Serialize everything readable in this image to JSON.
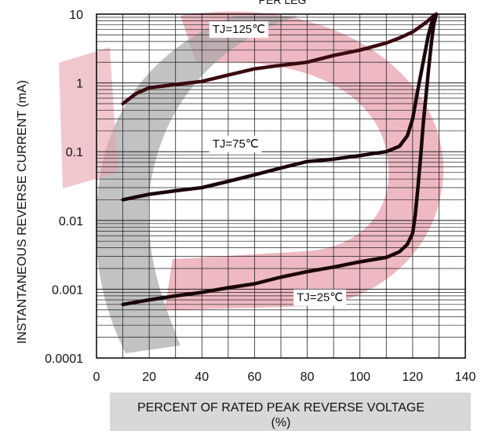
{
  "chart_data": {
    "type": "line",
    "title": "PER LEG",
    "xlabel_line1": "PERCENT OF RATED PEAK REVERSE VOLTAGE",
    "xlabel_line2": "(%)",
    "ylabel": "INSTANTANEOUS REVERSE CURRENT (mA)",
    "xlim": [
      0,
      140
    ],
    "ylim": [
      0.0001,
      10
    ],
    "y_scale": "log",
    "grid": true,
    "x_ticks": [
      0,
      20,
      40,
      60,
      80,
      100,
      120,
      140
    ],
    "x_tick_labels": [
      "0",
      "20",
      "40",
      "60",
      "80",
      "100",
      "120",
      "140"
    ],
    "y_ticks": [
      0.0001,
      0.001,
      0.01,
      0.1,
      1,
      10
    ],
    "y_tick_labels": [
      "0.0001",
      "0.001",
      "0.01",
      "0.1",
      "1",
      "10"
    ],
    "series": [
      {
        "name": "TJ=125℃",
        "color": "#3a0a10",
        "x": [
          10,
          15,
          20,
          30,
          40,
          50,
          60,
          70,
          80,
          90,
          100,
          110,
          115,
          120,
          125,
          128,
          129
        ],
        "y": [
          0.5,
          0.7,
          0.85,
          0.95,
          1.05,
          1.3,
          1.6,
          1.8,
          2.0,
          2.5,
          3.0,
          3.8,
          4.5,
          5.5,
          7.5,
          9.5,
          10
        ]
      },
      {
        "name": "TJ=75℃",
        "color": "#1a0508",
        "x": [
          10,
          20,
          30,
          40,
          50,
          60,
          70,
          80,
          90,
          100,
          110,
          115,
          118,
          120,
          122,
          124,
          126,
          127,
          128,
          129
        ],
        "y": [
          0.02,
          0.024,
          0.027,
          0.03,
          0.037,
          0.046,
          0.058,
          0.072,
          0.078,
          0.088,
          0.1,
          0.12,
          0.17,
          0.3,
          0.8,
          2.0,
          5.0,
          7.0,
          9.0,
          10
        ]
      },
      {
        "name": "TJ=25℃",
        "color": "#1a0508",
        "x": [
          10,
          20,
          30,
          40,
          50,
          60,
          70,
          80,
          90,
          100,
          110,
          115,
          118,
          120,
          121,
          122,
          123,
          124,
          125,
          126,
          127,
          128,
          129
        ],
        "y": [
          0.0006,
          0.0007,
          0.0008,
          0.0009,
          0.00105,
          0.0012,
          0.0015,
          0.0018,
          0.0021,
          0.0025,
          0.0029,
          0.0035,
          0.0045,
          0.0065,
          0.012,
          0.03,
          0.08,
          0.25,
          0.6,
          1.5,
          3.5,
          7.0,
          10
        ]
      }
    ],
    "annotations": [
      {
        "text": "TJ=125℃",
        "x": 44,
        "y": 5.3
      },
      {
        "text": "TJ=75℃",
        "x": 44,
        "y": 0.115
      },
      {
        "text": "TJ=25℃",
        "x": 76,
        "y": 0.00067
      }
    ]
  }
}
